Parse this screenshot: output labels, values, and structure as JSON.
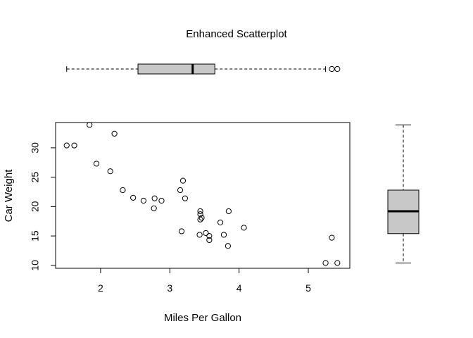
{
  "chart_data": [
    {
      "type": "scatter",
      "title": "Enhanced Scatterplot",
      "xlabel": "Miles Per Gallon",
      "ylabel": "Car Weight",
      "xlim": [
        1.35,
        5.6
      ],
      "ylim": [
        9.5,
        34.3
      ],
      "xticks": [
        2,
        3,
        4,
        5
      ],
      "yticks": [
        10,
        15,
        20,
        25,
        30
      ],
      "grid": false,
      "points": [
        {
          "x": 1.51,
          "y": 30.4
        },
        {
          "x": 1.62,
          "y": 30.4
        },
        {
          "x": 1.84,
          "y": 33.9
        },
        {
          "x": 1.94,
          "y": 27.3
        },
        {
          "x": 2.14,
          "y": 26.0
        },
        {
          "x": 2.2,
          "y": 32.4
        },
        {
          "x": 2.32,
          "y": 22.8
        },
        {
          "x": 2.47,
          "y": 21.5
        },
        {
          "x": 2.62,
          "y": 21.0
        },
        {
          "x": 2.77,
          "y": 19.7
        },
        {
          "x": 2.78,
          "y": 21.4
        },
        {
          "x": 2.88,
          "y": 21.0
        },
        {
          "x": 3.15,
          "y": 22.8
        },
        {
          "x": 3.17,
          "y": 15.8
        },
        {
          "x": 3.19,
          "y": 24.4
        },
        {
          "x": 3.22,
          "y": 21.4
        },
        {
          "x": 3.43,
          "y": 15.2
        },
        {
          "x": 3.44,
          "y": 17.8
        },
        {
          "x": 3.44,
          "y": 18.7
        },
        {
          "x": 3.44,
          "y": 19.2
        },
        {
          "x": 3.46,
          "y": 18.1
        },
        {
          "x": 3.52,
          "y": 15.5
        },
        {
          "x": 3.57,
          "y": 15.0
        },
        {
          "x": 3.57,
          "y": 14.3
        },
        {
          "x": 3.73,
          "y": 17.3
        },
        {
          "x": 3.78,
          "y": 15.2
        },
        {
          "x": 3.84,
          "y": 13.3
        },
        {
          "x": 3.85,
          "y": 19.2
        },
        {
          "x": 4.07,
          "y": 16.4
        },
        {
          "x": 5.25,
          "y": 10.4
        },
        {
          "x": 5.34,
          "y": 14.7
        },
        {
          "x": 5.42,
          "y": 10.4
        }
      ]
    },
    {
      "type": "box",
      "orientation": "horizontal",
      "variable": "Miles Per Gallon",
      "whisker_low": 1.51,
      "q1": 2.54,
      "median": 3.33,
      "q3": 3.65,
      "whisker_high": 5.25,
      "outliers": [
        5.34,
        5.42
      ],
      "fill": "#c8c8c8"
    },
    {
      "type": "box",
      "orientation": "vertical",
      "variable": "Car Weight",
      "whisker_low": 10.4,
      "q1": 15.4,
      "median": 19.2,
      "q3": 22.8,
      "whisker_high": 33.9,
      "outliers": [],
      "fill": "#c8c8c8"
    }
  ]
}
